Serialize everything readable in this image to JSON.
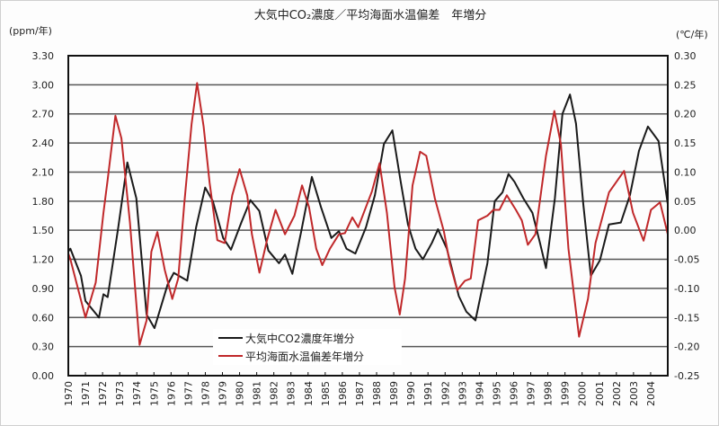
{
  "chart_data": {
    "type": "line",
    "title": "大気中CO₂濃度／平均海面水温偏差　年増分",
    "ylabel_left": "(ppm/年)",
    "ylabel_right": "(℃/年)",
    "xlabel": "",
    "xlim": [
      1970,
      2005
    ],
    "ylim_left": [
      0.0,
      3.3
    ],
    "ylim_right": [
      -0.25,
      0.3
    ],
    "grid": "horizontal",
    "legend_position": "bottom-left-center",
    "x_tick_labels": [
      "1970",
      "1971",
      "1972",
      "1973",
      "1974",
      "1975",
      "1976",
      "1977",
      "1978",
      "1979",
      "1980",
      "1981",
      "1982",
      "1983",
      "1984",
      "1985",
      "1986",
      "1987",
      "1988",
      "1989",
      "1990",
      "1991",
      "1992",
      "1993",
      "1994",
      "1995",
      "1996",
      "1997",
      "1998",
      "1999",
      "2000",
      "2001",
      "2002",
      "2003",
      "2004"
    ],
    "y_left_tick_labels": [
      "0.00",
      "0.30",
      "0.60",
      "0.90",
      "1.20",
      "1.50",
      "1.80",
      "2.10",
      "2.40",
      "2.70",
      "3.00",
      "3.30"
    ],
    "y_right_tick_labels": [
      "-0.25",
      "-0.20",
      "-0.15",
      "-0.10",
      "-0.05",
      "0.00",
      "0.05",
      "0.10",
      "0.15",
      "0.20",
      "0.25",
      "0.30"
    ],
    "series": [
      {
        "name": "大気中CO2濃度年増分",
        "axis": "left",
        "color": "#1a1a1a",
        "x": [
          1970.0,
          1970.12,
          1970.74,
          1971.0,
          1971.79,
          1972.05,
          1972.3,
          1972.92,
          1973.45,
          1973.97,
          1974.57,
          1975.03,
          1975.8,
          1976.16,
          1976.94,
          1977.46,
          1977.99,
          1978.44,
          1979.04,
          1979.5,
          1980.1,
          1980.63,
          1981.15,
          1981.68,
          1982.3,
          1982.65,
          1983.08,
          1983.6,
          1984.22,
          1984.75,
          1985.36,
          1985.8,
          1986.24,
          1986.76,
          1987.38,
          1987.9,
          1988.43,
          1988.92,
          1989.39,
          1989.83,
          1990.27,
          1990.7,
          1991.23,
          1991.58,
          1992.1,
          1992.8,
          1993.24,
          1993.77,
          1994.47,
          1994.9,
          1995.35,
          1995.7,
          1996.05,
          1996.57,
          1997.1,
          1997.54,
          1997.89,
          1998.41,
          1998.85,
          1999.29,
          1999.64,
          2000.07,
          2000.51,
          2001.04,
          2001.57,
          2002.26,
          2002.79,
          2003.32,
          2003.84,
          2004.46,
          2005.0
        ],
        "values": [
          1.28,
          1.31,
          1.03,
          0.77,
          0.6,
          0.84,
          0.81,
          1.53,
          2.2,
          1.83,
          0.63,
          0.49,
          0.94,
          1.06,
          0.98,
          1.53,
          1.94,
          1.8,
          1.42,
          1.3,
          1.58,
          1.81,
          1.7,
          1.29,
          1.16,
          1.25,
          1.05,
          1.49,
          2.05,
          1.74,
          1.42,
          1.49,
          1.31,
          1.26,
          1.53,
          1.86,
          2.39,
          2.53,
          2.02,
          1.56,
          1.31,
          1.2,
          1.37,
          1.51,
          1.31,
          0.82,
          0.66,
          0.57,
          1.16,
          1.8,
          1.89,
          2.08,
          2.0,
          1.83,
          1.68,
          1.37,
          1.11,
          1.83,
          2.7,
          2.9,
          2.6,
          1.77,
          1.03,
          1.19,
          1.56,
          1.58,
          1.86,
          2.32,
          2.57,
          2.42,
          1.77
        ]
      },
      {
        "name": "平均海面水温偏差年増分",
        "axis": "right",
        "color": "#c0282a",
        "x": [
          1970.0,
          1970.12,
          1971.0,
          1971.6,
          1972.05,
          1972.3,
          1972.75,
          1973.1,
          1973.6,
          1974.16,
          1974.57,
          1974.85,
          1975.2,
          1975.63,
          1976.07,
          1976.42,
          1976.77,
          1977.2,
          1977.52,
          1977.9,
          1978.25,
          1978.7,
          1979.13,
          1979.57,
          1980.0,
          1980.45,
          1980.72,
          1981.16,
          1981.6,
          1982.1,
          1982.65,
          1983.2,
          1983.65,
          1984.05,
          1984.48,
          1984.83,
          1985.27,
          1985.8,
          1986.15,
          1986.58,
          1986.93,
          1987.38,
          1987.73,
          1988.17,
          1988.6,
          1989.05,
          1989.35,
          1989.66,
          1990.1,
          1990.54,
          1990.9,
          1991.4,
          1991.93,
          1992.28,
          1992.71,
          1993.15,
          1993.5,
          1993.93,
          1994.47,
          1994.82,
          1995.17,
          1995.6,
          1996.13,
          1996.48,
          1996.83,
          1997.27,
          1997.89,
          1998.38,
          1998.76,
          1999.2,
          1999.82,
          2000.34,
          2000.78,
          2001.57,
          2002.45,
          2002.97,
          2003.59,
          2004.02,
          2004.55,
          2005.0
        ],
        "values": [
          -0.04,
          -0.05,
          -0.15,
          -0.09,
          0.03,
          0.087,
          0.197,
          0.158,
          0.013,
          -0.197,
          -0.155,
          -0.037,
          -0.003,
          -0.068,
          -0.118,
          -0.083,
          0.045,
          0.183,
          0.253,
          0.178,
          0.082,
          -0.017,
          -0.022,
          0.06,
          0.105,
          0.06,
          -0.007,
          -0.073,
          -0.017,
          0.035,
          -0.007,
          0.025,
          0.077,
          0.04,
          -0.032,
          -0.06,
          -0.032,
          -0.007,
          -0.005,
          0.022,
          0.005,
          0.04,
          0.067,
          0.115,
          0.03,
          -0.098,
          -0.145,
          -0.083,
          0.077,
          0.135,
          0.128,
          0.055,
          -0.002,
          -0.057,
          -0.103,
          -0.087,
          -0.083,
          0.017,
          0.025,
          0.035,
          0.035,
          0.06,
          0.035,
          0.017,
          -0.025,
          -0.007,
          0.128,
          0.205,
          0.148,
          -0.032,
          -0.183,
          -0.118,
          -0.022,
          0.065,
          0.102,
          0.03,
          -0.018,
          0.035,
          0.048,
          -0.007
        ]
      }
    ]
  }
}
